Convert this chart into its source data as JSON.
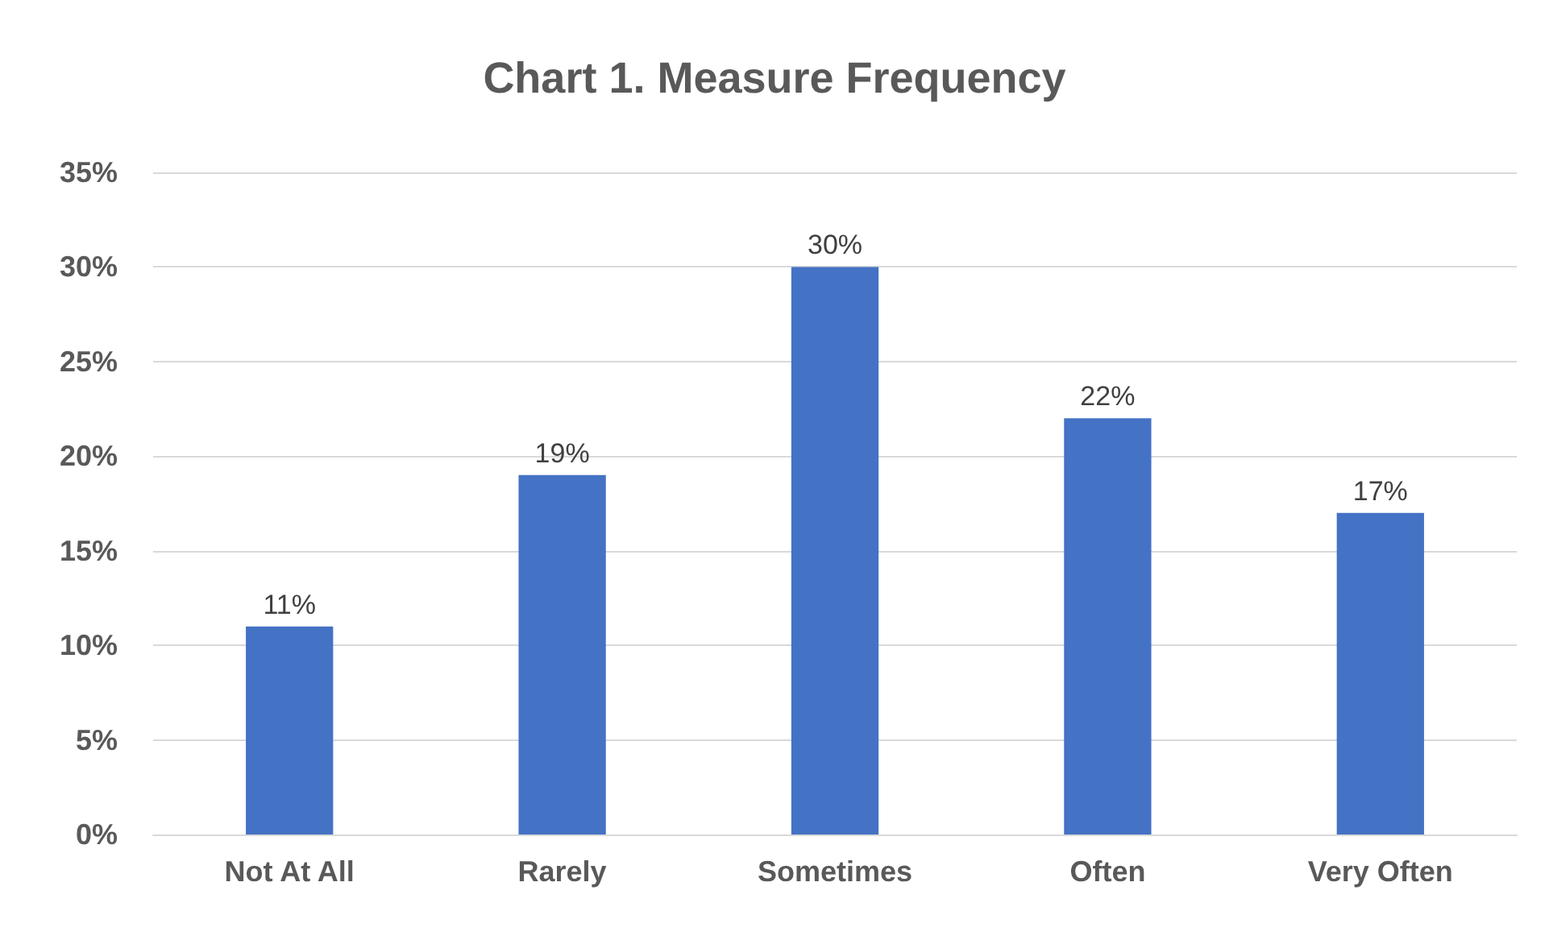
{
  "chart_data": {
    "type": "bar",
    "title": "Chart 1. Measure Frequency",
    "categories": [
      "Not At All",
      "Rarely",
      "Sometimes",
      "Often",
      "Very Often"
    ],
    "values": [
      11,
      19,
      30,
      22,
      17
    ],
    "value_labels": [
      "11%",
      "19%",
      "30%",
      "22%",
      "17%"
    ],
    "color": "#4472c4",
    "ylim": [
      0,
      35
    ],
    "yticks": [
      {
        "value": 0,
        "label": "0%"
      },
      {
        "value": 5,
        "label": "5%"
      },
      {
        "value": 10,
        "label": "10%"
      },
      {
        "value": 15,
        "label": "15%"
      },
      {
        "value": 20,
        "label": "20%"
      },
      {
        "value": 25,
        "label": "25%"
      },
      {
        "value": 30,
        "label": "30%"
      },
      {
        "value": 35,
        "label": "35%"
      }
    ],
    "grid": true
  }
}
